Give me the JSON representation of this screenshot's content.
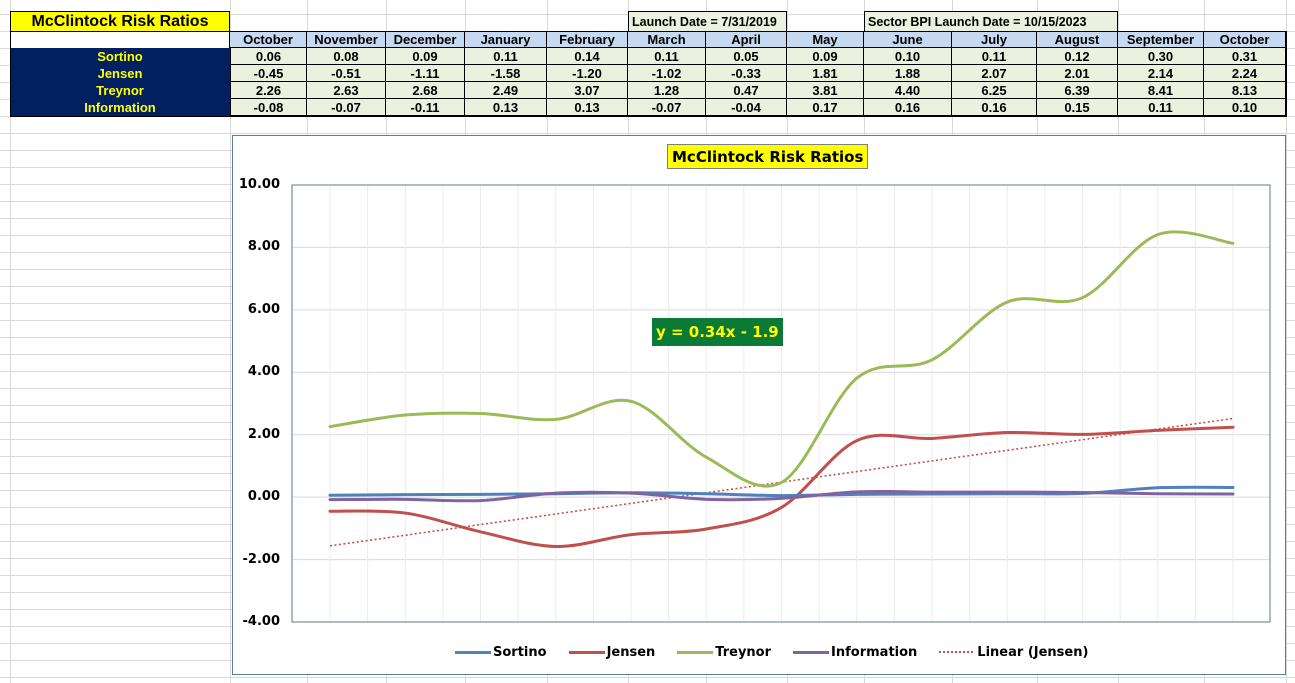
{
  "sheet": {
    "title": "McClintock Risk Ratios",
    "launch_note": "Launch Date = 7/31/2019",
    "sector_note": "Sector BPI Launch Date = 10/15/2023",
    "months": [
      "October",
      "November",
      "December",
      "January",
      "February",
      "March",
      "April",
      "May",
      "June",
      "July",
      "August",
      "September",
      "October"
    ],
    "rows": [
      {
        "label": "Sortino",
        "values": [
          "0.06",
          "0.08",
          "0.09",
          "0.11",
          "0.14",
          "0.11",
          "0.05",
          "0.09",
          "0.10",
          "0.11",
          "0.12",
          "0.30",
          "0.31"
        ]
      },
      {
        "label": "Jensen",
        "values": [
          "-0.45",
          "-0.51",
          "-1.11",
          "-1.58",
          "-1.20",
          "-1.02",
          "-0.33",
          "1.81",
          "1.88",
          "2.07",
          "2.01",
          "2.14",
          "2.24"
        ]
      },
      {
        "label": "Treynor",
        "values": [
          "2.26",
          "2.63",
          "2.68",
          "2.49",
          "3.07",
          "1.28",
          "0.47",
          "3.81",
          "4.40",
          "6.25",
          "6.39",
          "8.41",
          "8.13"
        ]
      },
      {
        "label": "Information",
        "values": [
          "-0.08",
          "-0.07",
          "-0.11",
          "0.13",
          "0.13",
          "-0.07",
          "-0.04",
          "0.17",
          "0.16",
          "0.16",
          "0.15",
          "0.11",
          "0.10"
        ]
      }
    ]
  },
  "chart": {
    "title": "McClintock Risk Ratios",
    "trendline_equation": "y = 0.34x - 1.9",
    "y_ticks": [
      "10.00",
      "8.00",
      "6.00",
      "4.00",
      "2.00",
      "0.00",
      "-2.00",
      "-4.00"
    ],
    "legend": [
      "Sortino",
      "Jensen",
      "Treynor",
      "Information",
      "Linear (Jensen)"
    ]
  },
  "colors": {
    "sortino": "#4f81bd",
    "jensen": "#c0504d",
    "treynor": "#9bbb59",
    "information": "#8064a2",
    "trend": "#c0504d",
    "label_bg": "#002060",
    "label_fg": "#ffff00",
    "header_bg": "#c5d9f1",
    "value_bg": "#ebf1de",
    "title_bg": "#ffff00",
    "equation_bg": "#0b7a36"
  },
  "chart_data": {
    "type": "line",
    "title": "McClintock Risk Ratios",
    "xlabel": "",
    "ylabel": "",
    "categories": [
      "October",
      "November",
      "December",
      "January",
      "February",
      "March",
      "April",
      "May",
      "June",
      "July",
      "August",
      "September",
      "October"
    ],
    "ylim": [
      -4,
      10
    ],
    "y_ticks": [
      10,
      8,
      6,
      4,
      2,
      0,
      -2,
      -4
    ],
    "grid": true,
    "smoothed": true,
    "legend_position": "bottom",
    "series": [
      {
        "name": "Sortino",
        "values": [
          0.06,
          0.08,
          0.09,
          0.11,
          0.14,
          0.11,
          0.05,
          0.09,
          0.1,
          0.11,
          0.12,
          0.3,
          0.31
        ]
      },
      {
        "name": "Jensen",
        "values": [
          -0.45,
          -0.51,
          -1.11,
          -1.58,
          -1.2,
          -1.02,
          -0.33,
          1.81,
          1.88,
          2.07,
          2.01,
          2.14,
          2.24
        ]
      },
      {
        "name": "Treynor",
        "values": [
          2.26,
          2.63,
          2.68,
          2.49,
          3.07,
          1.28,
          0.47,
          3.81,
          4.4,
          6.25,
          6.39,
          8.41,
          8.13
        ]
      },
      {
        "name": "Information",
        "values": [
          -0.08,
          -0.07,
          -0.11,
          0.13,
          0.13,
          -0.07,
          -0.04,
          0.17,
          0.16,
          0.16,
          0.15,
          0.11,
          0.1
        ]
      }
    ],
    "trendline": {
      "name": "Linear (Jensen)",
      "of": "Jensen",
      "type": "linear",
      "slope": 0.34,
      "intercept": -1.9,
      "equation": "y = 0.34x - 1.9"
    }
  }
}
